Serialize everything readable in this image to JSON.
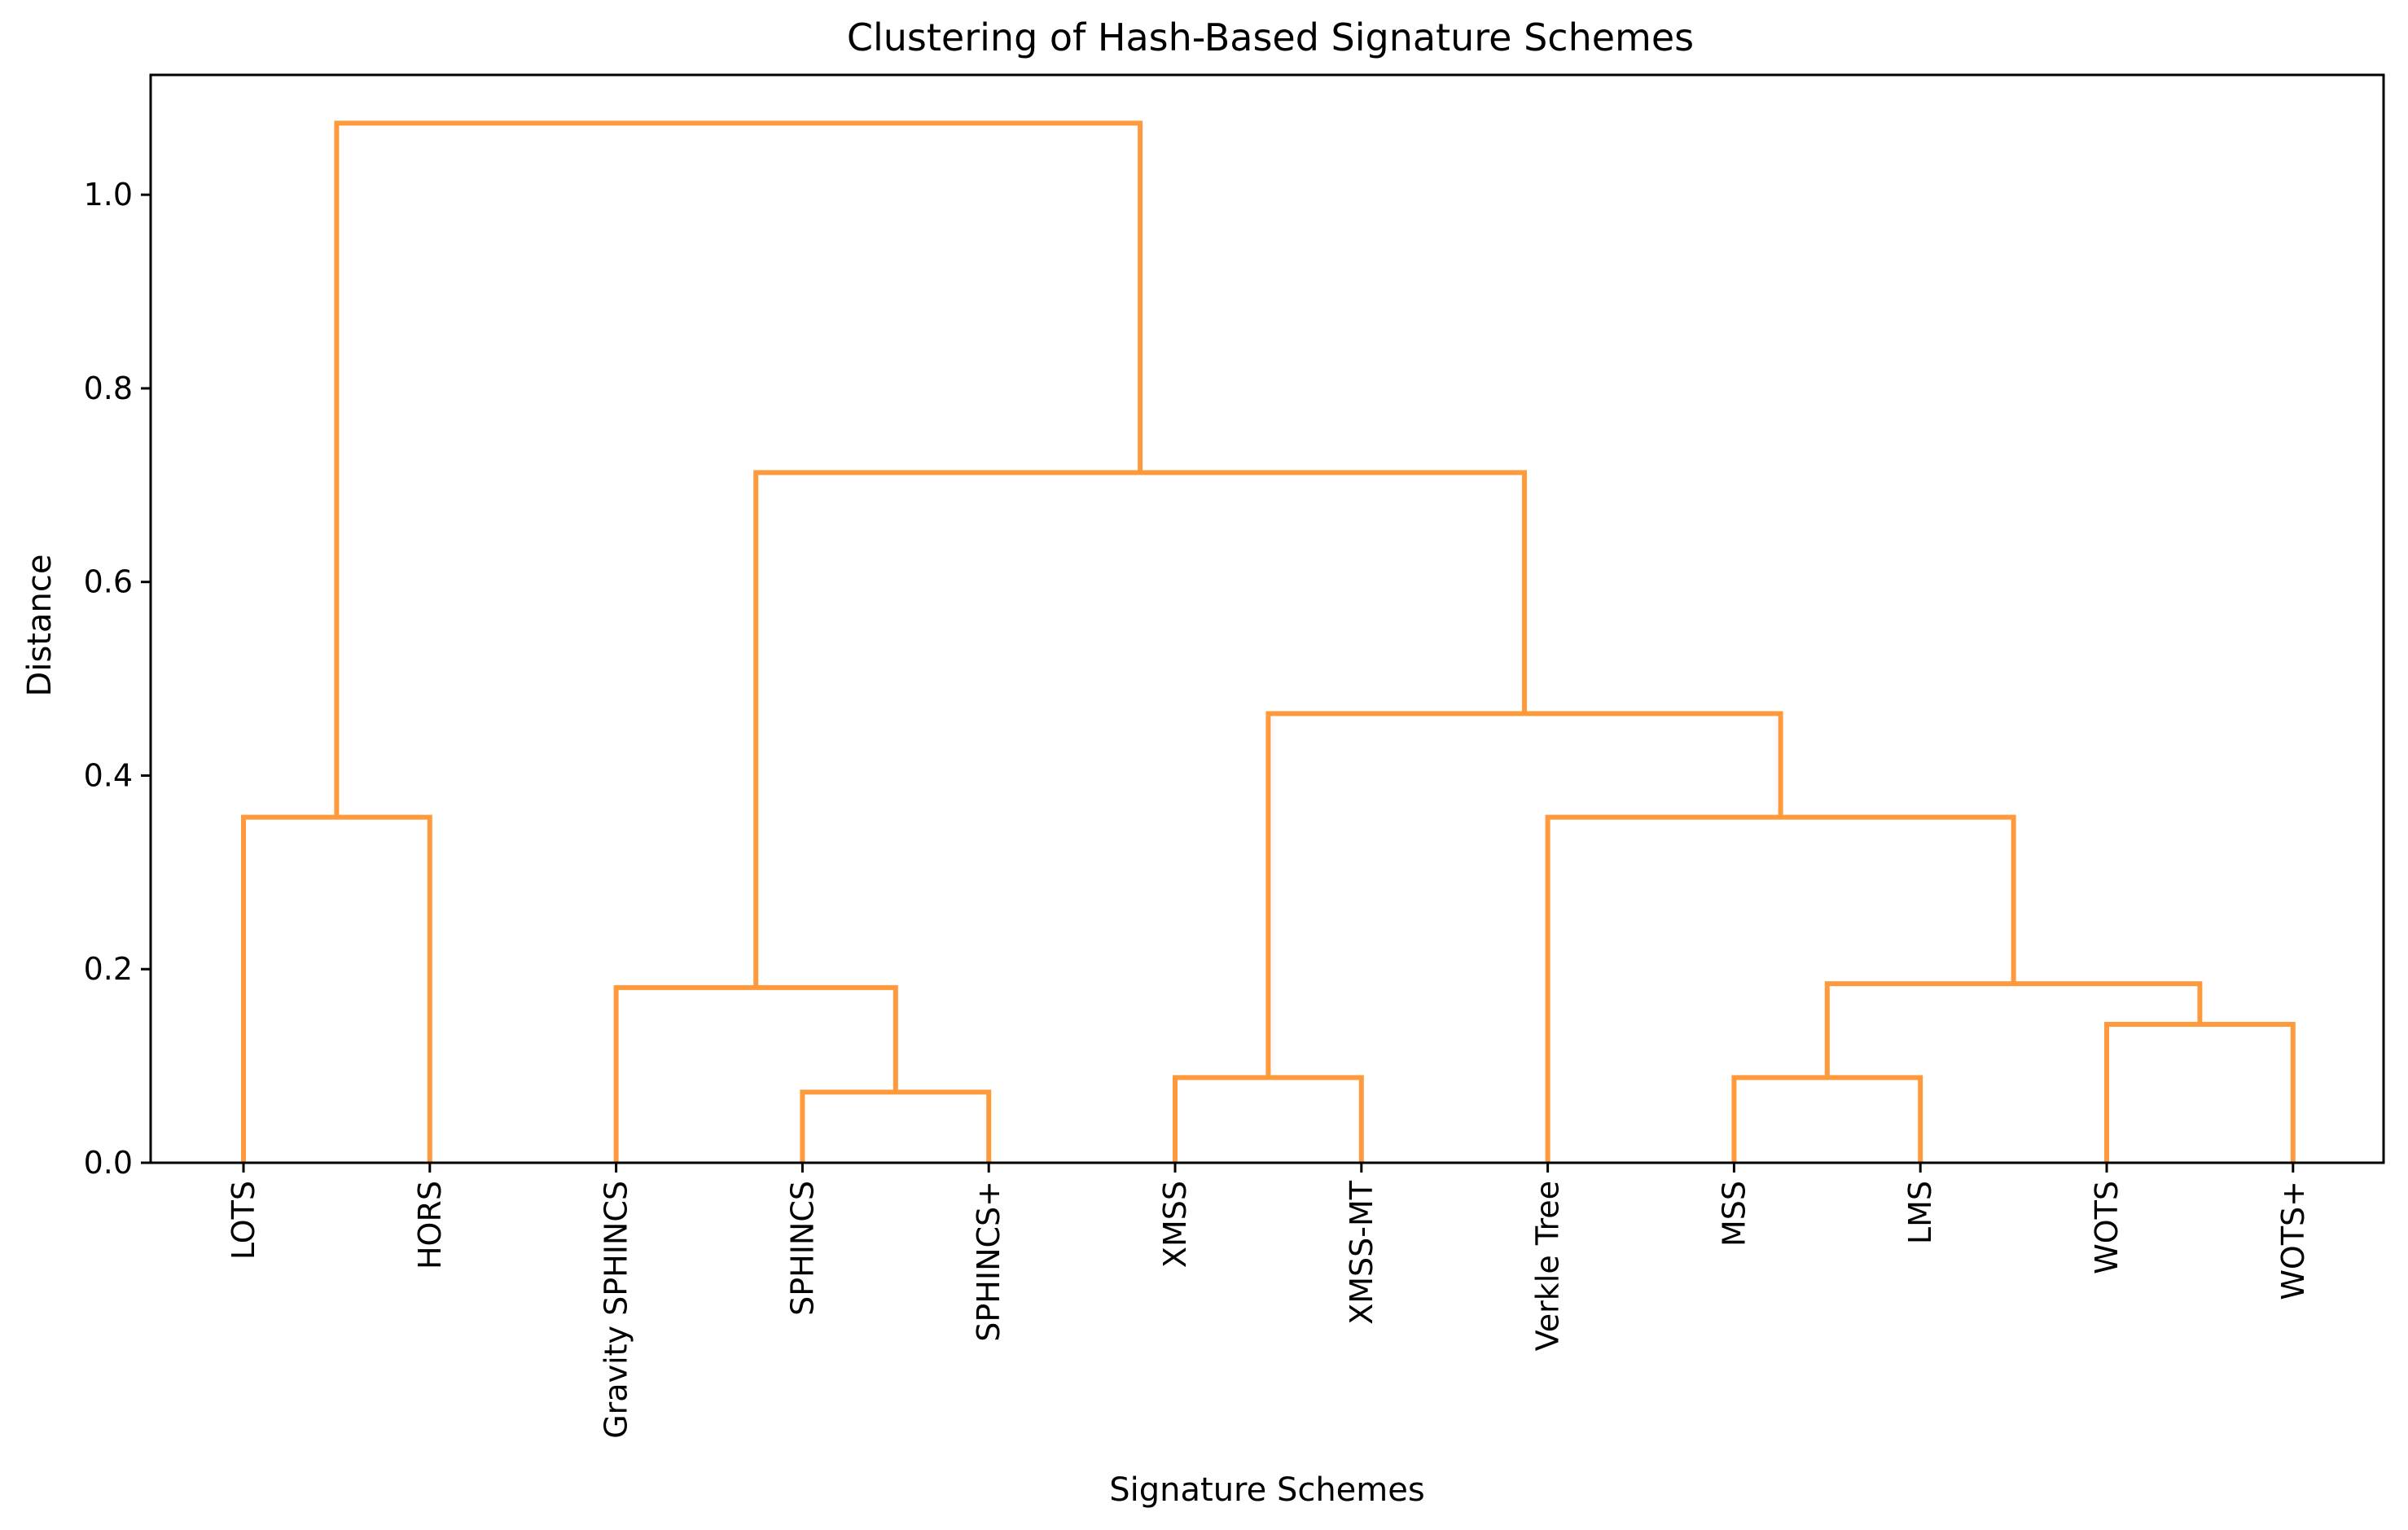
{
  "chart_data": {
    "type": "dendrogram",
    "title": "Clustering of Hash-Based Signature Schemes",
    "xlabel": "Signature Schemes",
    "ylabel": "Distance",
    "ylim": [
      0,
      1.1238
    ],
    "yticks": [
      0.0,
      0.2,
      0.4,
      0.6,
      0.8,
      1.0
    ],
    "ytick_labels": [
      "0.0",
      "0.2",
      "0.4",
      "0.6",
      "0.8",
      "1.0"
    ],
    "leaves": [
      "LOTS",
      "HORS",
      "Gravity SPHINCS",
      "SPHINCS",
      "SPHINCS+",
      "XMSS",
      "XMSS-MT",
      "Verkle Tree",
      "MSS",
      "LMS",
      "WOTS",
      "WOTS+"
    ],
    "link_color": "#ff9a3c",
    "grid": false,
    "merges": [
      {
        "left": "SPHINCS",
        "right": "SPHINCS+",
        "distance": 0.073
      },
      {
        "left": "XMSS",
        "right": "XMSS-MT",
        "distance": 0.088
      },
      {
        "left": "MSS",
        "right": "LMS",
        "distance": 0.088
      },
      {
        "left": "WOTS",
        "right": "WOTS+",
        "distance": 0.143
      },
      {
        "left": "Gravity SPHINCS",
        "right": "SPHINCS | SPHINCS+",
        "distance": 0.181
      },
      {
        "left": "MSS | LMS",
        "right": "WOTS | WOTS+",
        "distance": 0.185
      },
      {
        "left": "LOTS",
        "right": "HORS",
        "distance": 0.357
      },
      {
        "left": "Verkle Tree",
        "right": "MSS | LMS | WOTS | WOTS+",
        "distance": 0.357
      },
      {
        "left": "XMSS | XMSS-MT",
        "right": "Verkle Tree | MSS | LMS | WOTS | WOTS+",
        "distance": 0.464
      },
      {
        "left": "Gravity SPHINCS | SPHINCS | SPHINCS+",
        "right": "XMSS | XMSS-MT | Verkle Tree | MSS | LMS | WOTS | WOTS+",
        "distance": 0.713
      },
      {
        "left": "LOTS | HORS",
        "right": "Gravity SPHINCS | SPHINCS | SPHINCS+ | XMSS | XMSS-MT | Verkle Tree | MSS | LMS | WOTS | WOTS+",
        "distance": 1.074
      }
    ]
  }
}
